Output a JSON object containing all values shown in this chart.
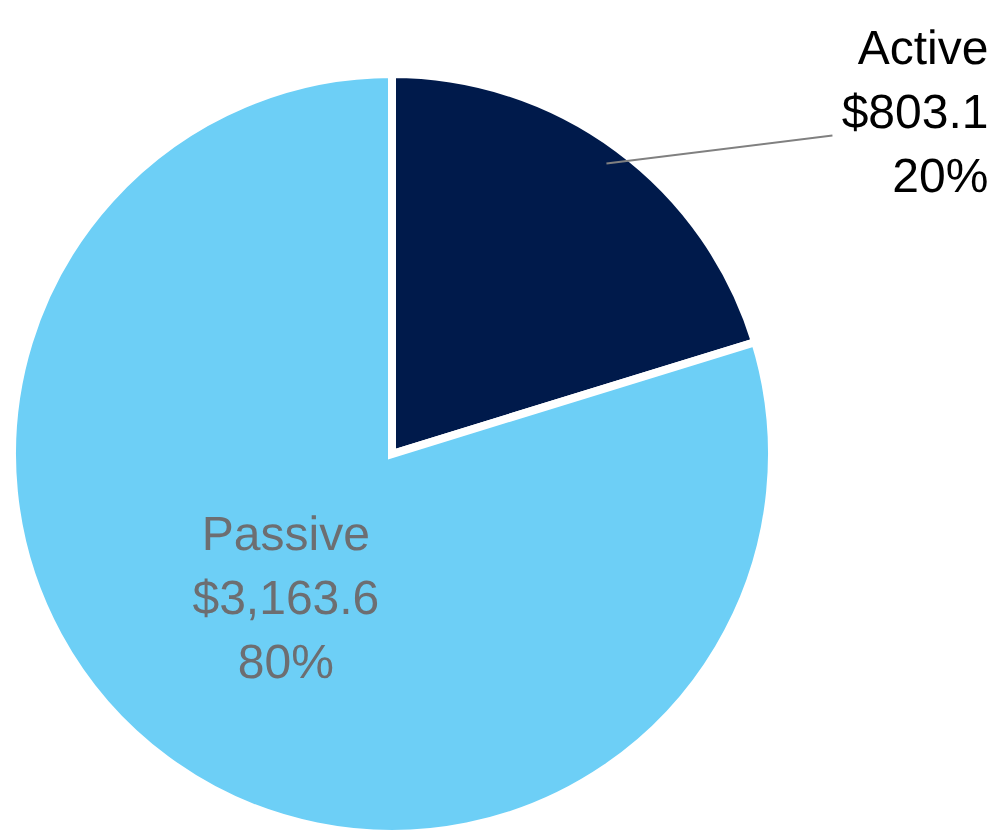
{
  "chart_data": {
    "type": "pie",
    "categories": [
      "Active",
      "Passive"
    ],
    "values": [
      803.1,
      3163.6
    ],
    "colors": [
      "#001a4b",
      "#6dcff6"
    ],
    "value_labels": [
      "$803.1\n20%",
      "$3,163.6\n80%"
    ],
    "legend": false
  }
}
